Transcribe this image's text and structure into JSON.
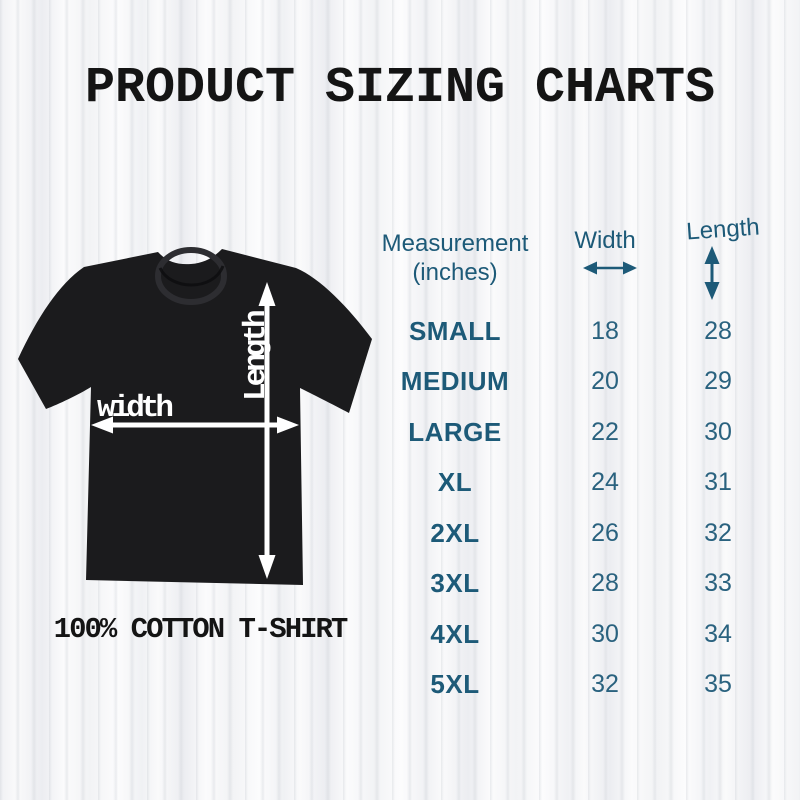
{
  "header": {
    "title": "PRODUCT SIZING CHARTS"
  },
  "figure": {
    "width_label": "width",
    "length_label": "Length",
    "caption": "100% COTTON T-SHIRT"
  },
  "table_header": {
    "measurement_line1": "Measurement",
    "measurement_line2": "(inches)",
    "width": "Width",
    "length": "Length"
  },
  "chart_data": {
    "type": "table",
    "title": "Product sizing chart (t-shirt, inches)",
    "columns": [
      "Measurement (inches)",
      "Width",
      "Length"
    ],
    "categories": [
      "SMALL",
      "MEDIUM",
      "LARGE",
      "XL",
      "2XL",
      "3XL",
      "4XL",
      "5XL"
    ],
    "series": [
      {
        "name": "Width",
        "values": [
          18,
          20,
          22,
          24,
          26,
          28,
          30,
          32
        ]
      },
      {
        "name": "Length",
        "values": [
          28,
          29,
          30,
          31,
          32,
          33,
          34,
          35
        ]
      }
    ]
  },
  "colors": {
    "accent_teal": "#1d5a78",
    "numbers_teal": "#2a627f",
    "ink_black": "#141414",
    "shirt_black": "#1b1b1d",
    "arrow_white": "#ffffff",
    "background": "#fbfbfc"
  }
}
